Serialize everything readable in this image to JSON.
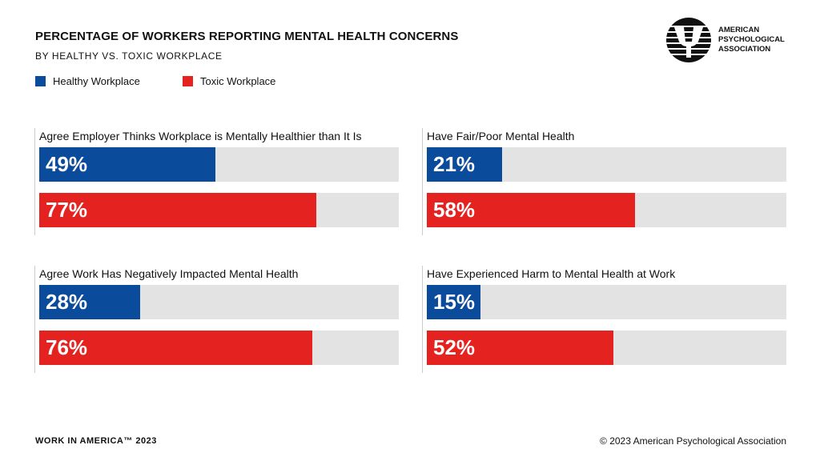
{
  "chart_data": {
    "type": "bar",
    "title": "PERCENTAGE OF WORKERS REPORTING MENTAL HEALTH CONCERNS",
    "subtitle": "BY HEALTHY VS. TOXIC WORKPLACE",
    "orientation": "horizontal",
    "xlim": [
      0,
      100
    ],
    "grid": false,
    "legend_placement": "top-left",
    "categories": [
      "Agree Employer Thinks Workplace is Mentally Healthier than It Is",
      "Have Fair/Poor Mental Health",
      "Agree Work Has Negatively Impacted Mental Health",
      "Have Experienced Harm to Mental Health at Work"
    ],
    "series": [
      {
        "name": "Healthy Workplace",
        "color": "#0a4b9c",
        "values": [
          49,
          21,
          28,
          15
        ]
      },
      {
        "name": "Toxic Workplace",
        "color": "#e42320",
        "values": [
          77,
          58,
          76,
          52
        ]
      }
    ]
  },
  "logo": {
    "text": "AMERICAN\nPSYCHOLOGICAL\nASSOCIATION"
  },
  "footer": {
    "left": "WORK IN AMERICA™ 2023",
    "right": "© 2023 American Psychological Association"
  }
}
